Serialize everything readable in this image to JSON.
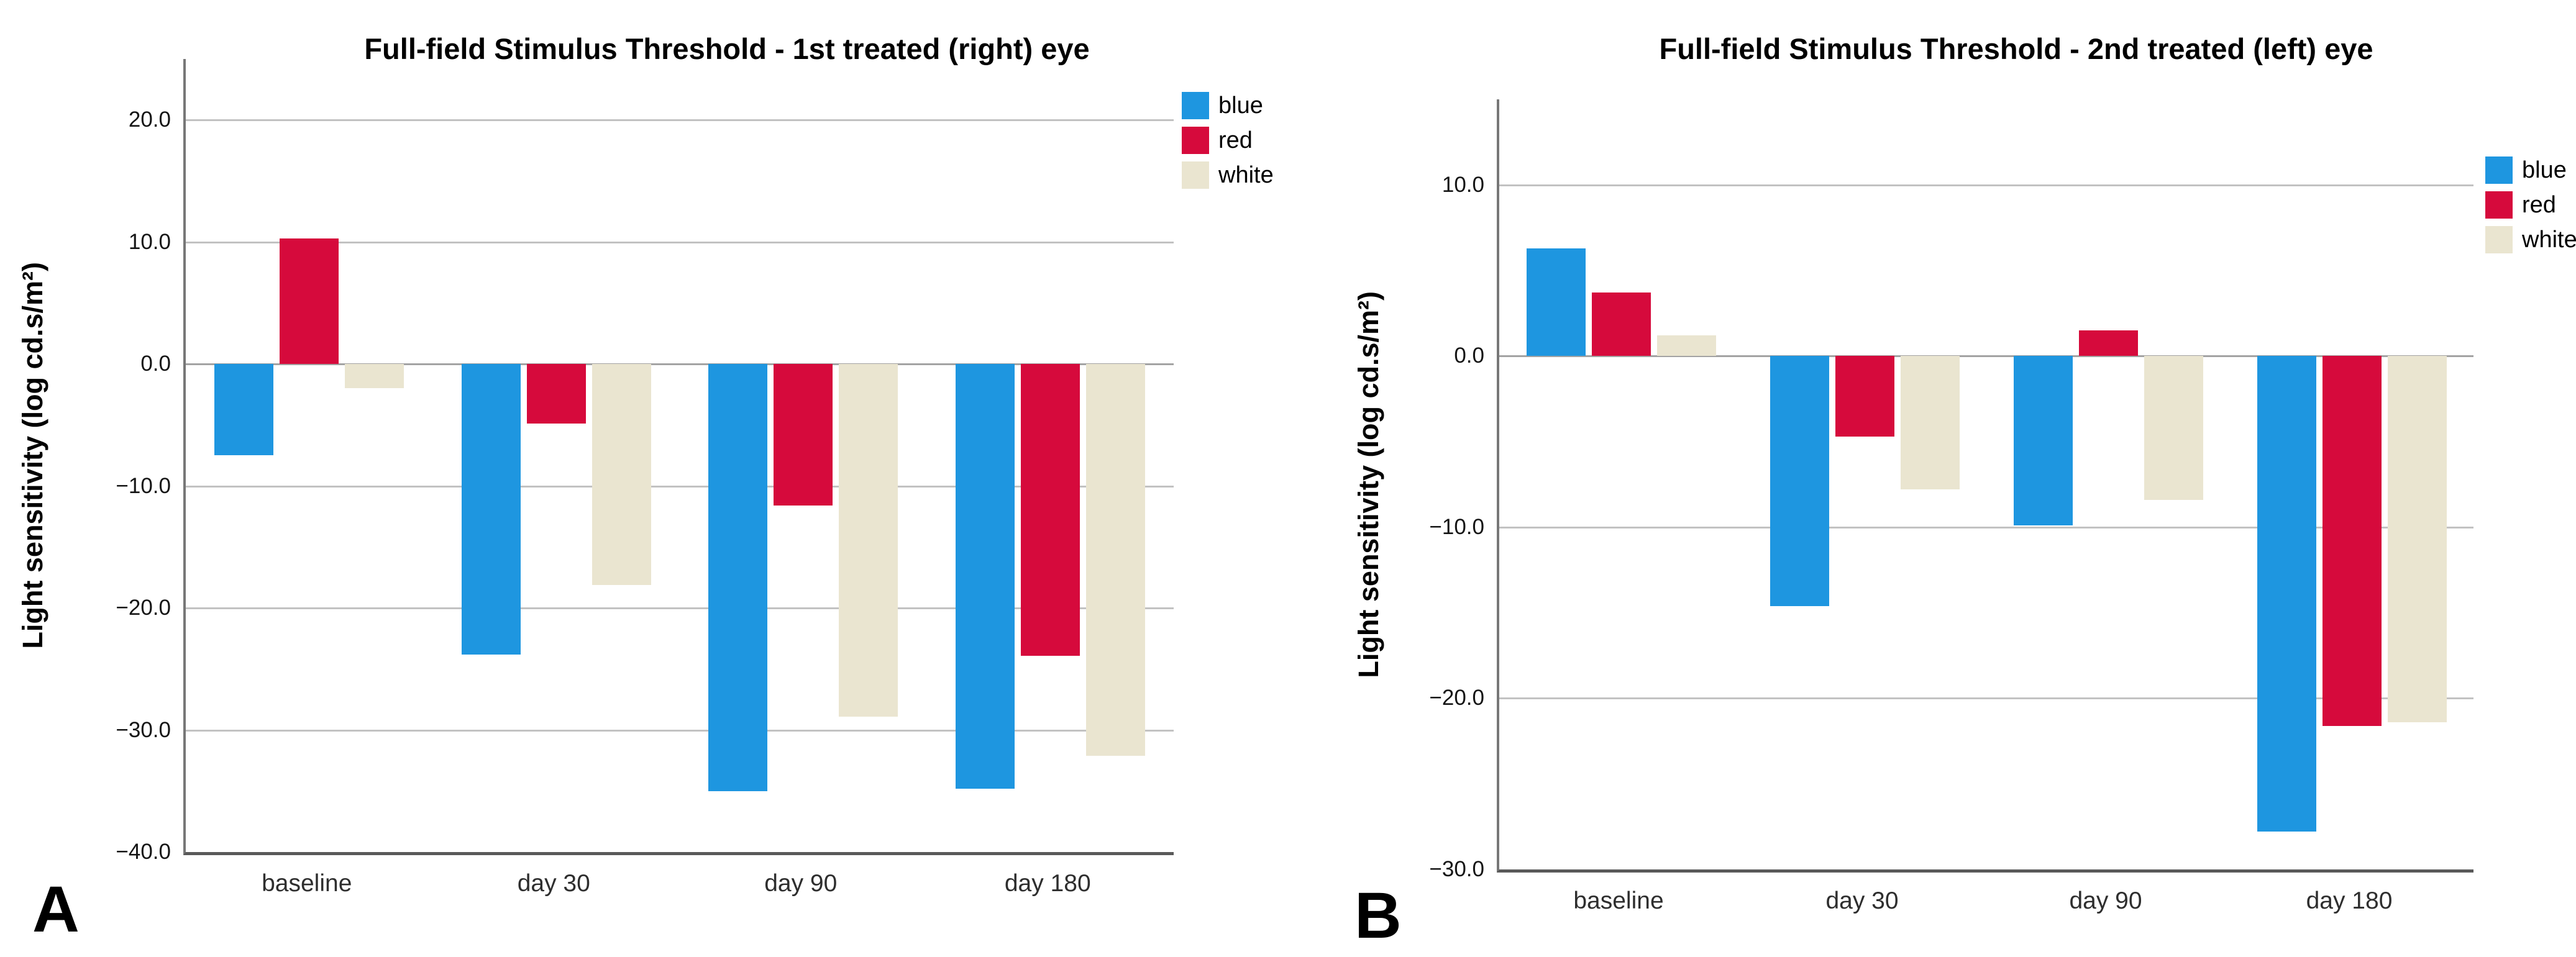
{
  "figure": {
    "background_color": "#FFFFFF",
    "gridline_color": "#C2C2C2",
    "axis_line_color": "#595959"
  },
  "chart_data": [
    {
      "type": "bar",
      "panel_label": "A",
      "title": "Full-field Stimulus Threshold - 1st treated (right) eye",
      "ylabel": "Light sensitivity (log cd.s/m²)",
      "xlabel": "",
      "categories": [
        "baseline",
        "day 30",
        "day 90",
        "day 180"
      ],
      "series": [
        {
          "name": "blue",
          "color": "#1E96E0",
          "values": [
            -7.5,
            -23.8,
            -35.0,
            -34.8
          ]
        },
        {
          "name": "red",
          "color": "#D60A3C",
          "values": [
            10.3,
            -4.9,
            -11.6,
            -23.9
          ]
        },
        {
          "name": "white",
          "color": "#EAE5D0",
          "values": [
            -2.0,
            -18.1,
            -28.9,
            -32.1
          ]
        }
      ],
      "ylim": [
        -40,
        25
      ],
      "y_ticks": [
        20,
        10,
        0,
        -10,
        -20,
        -30,
        -40
      ],
      "y_tick_labels": [
        "20.0",
        "10.0",
        "0.0",
        "−10.0",
        "−20.0",
        "−30.0",
        "−40.0"
      ],
      "grid": true,
      "legend_position": "top-right-outside"
    },
    {
      "type": "bar",
      "panel_label": "B",
      "title": "Full-field Stimulus Threshold - 2nd treated (left) eye",
      "ylabel": "Light sensitivity (log cd.s/m²)",
      "xlabel": "",
      "categories": [
        "baseline",
        "day 30",
        "day 90",
        "day 180"
      ],
      "series": [
        {
          "name": "blue",
          "color": "#1E96E0",
          "values": [
            6.3,
            -14.6,
            -9.9,
            -27.8
          ]
        },
        {
          "name": "red",
          "color": "#D60A3C",
          "values": [
            3.7,
            -4.7,
            1.5,
            -21.6
          ]
        },
        {
          "name": "white",
          "color": "#EAE5D0",
          "values": [
            1.2,
            -7.8,
            -8.4,
            -21.4
          ]
        }
      ],
      "ylim": [
        -30,
        15
      ],
      "y_ticks": [
        10,
        0,
        -10,
        -20,
        -30
      ],
      "y_tick_labels": [
        "10.0",
        "0.0",
        "−10.0",
        "−20.0",
        "−30.0"
      ],
      "grid": true,
      "legend_position": "top-right-outside"
    }
  ]
}
